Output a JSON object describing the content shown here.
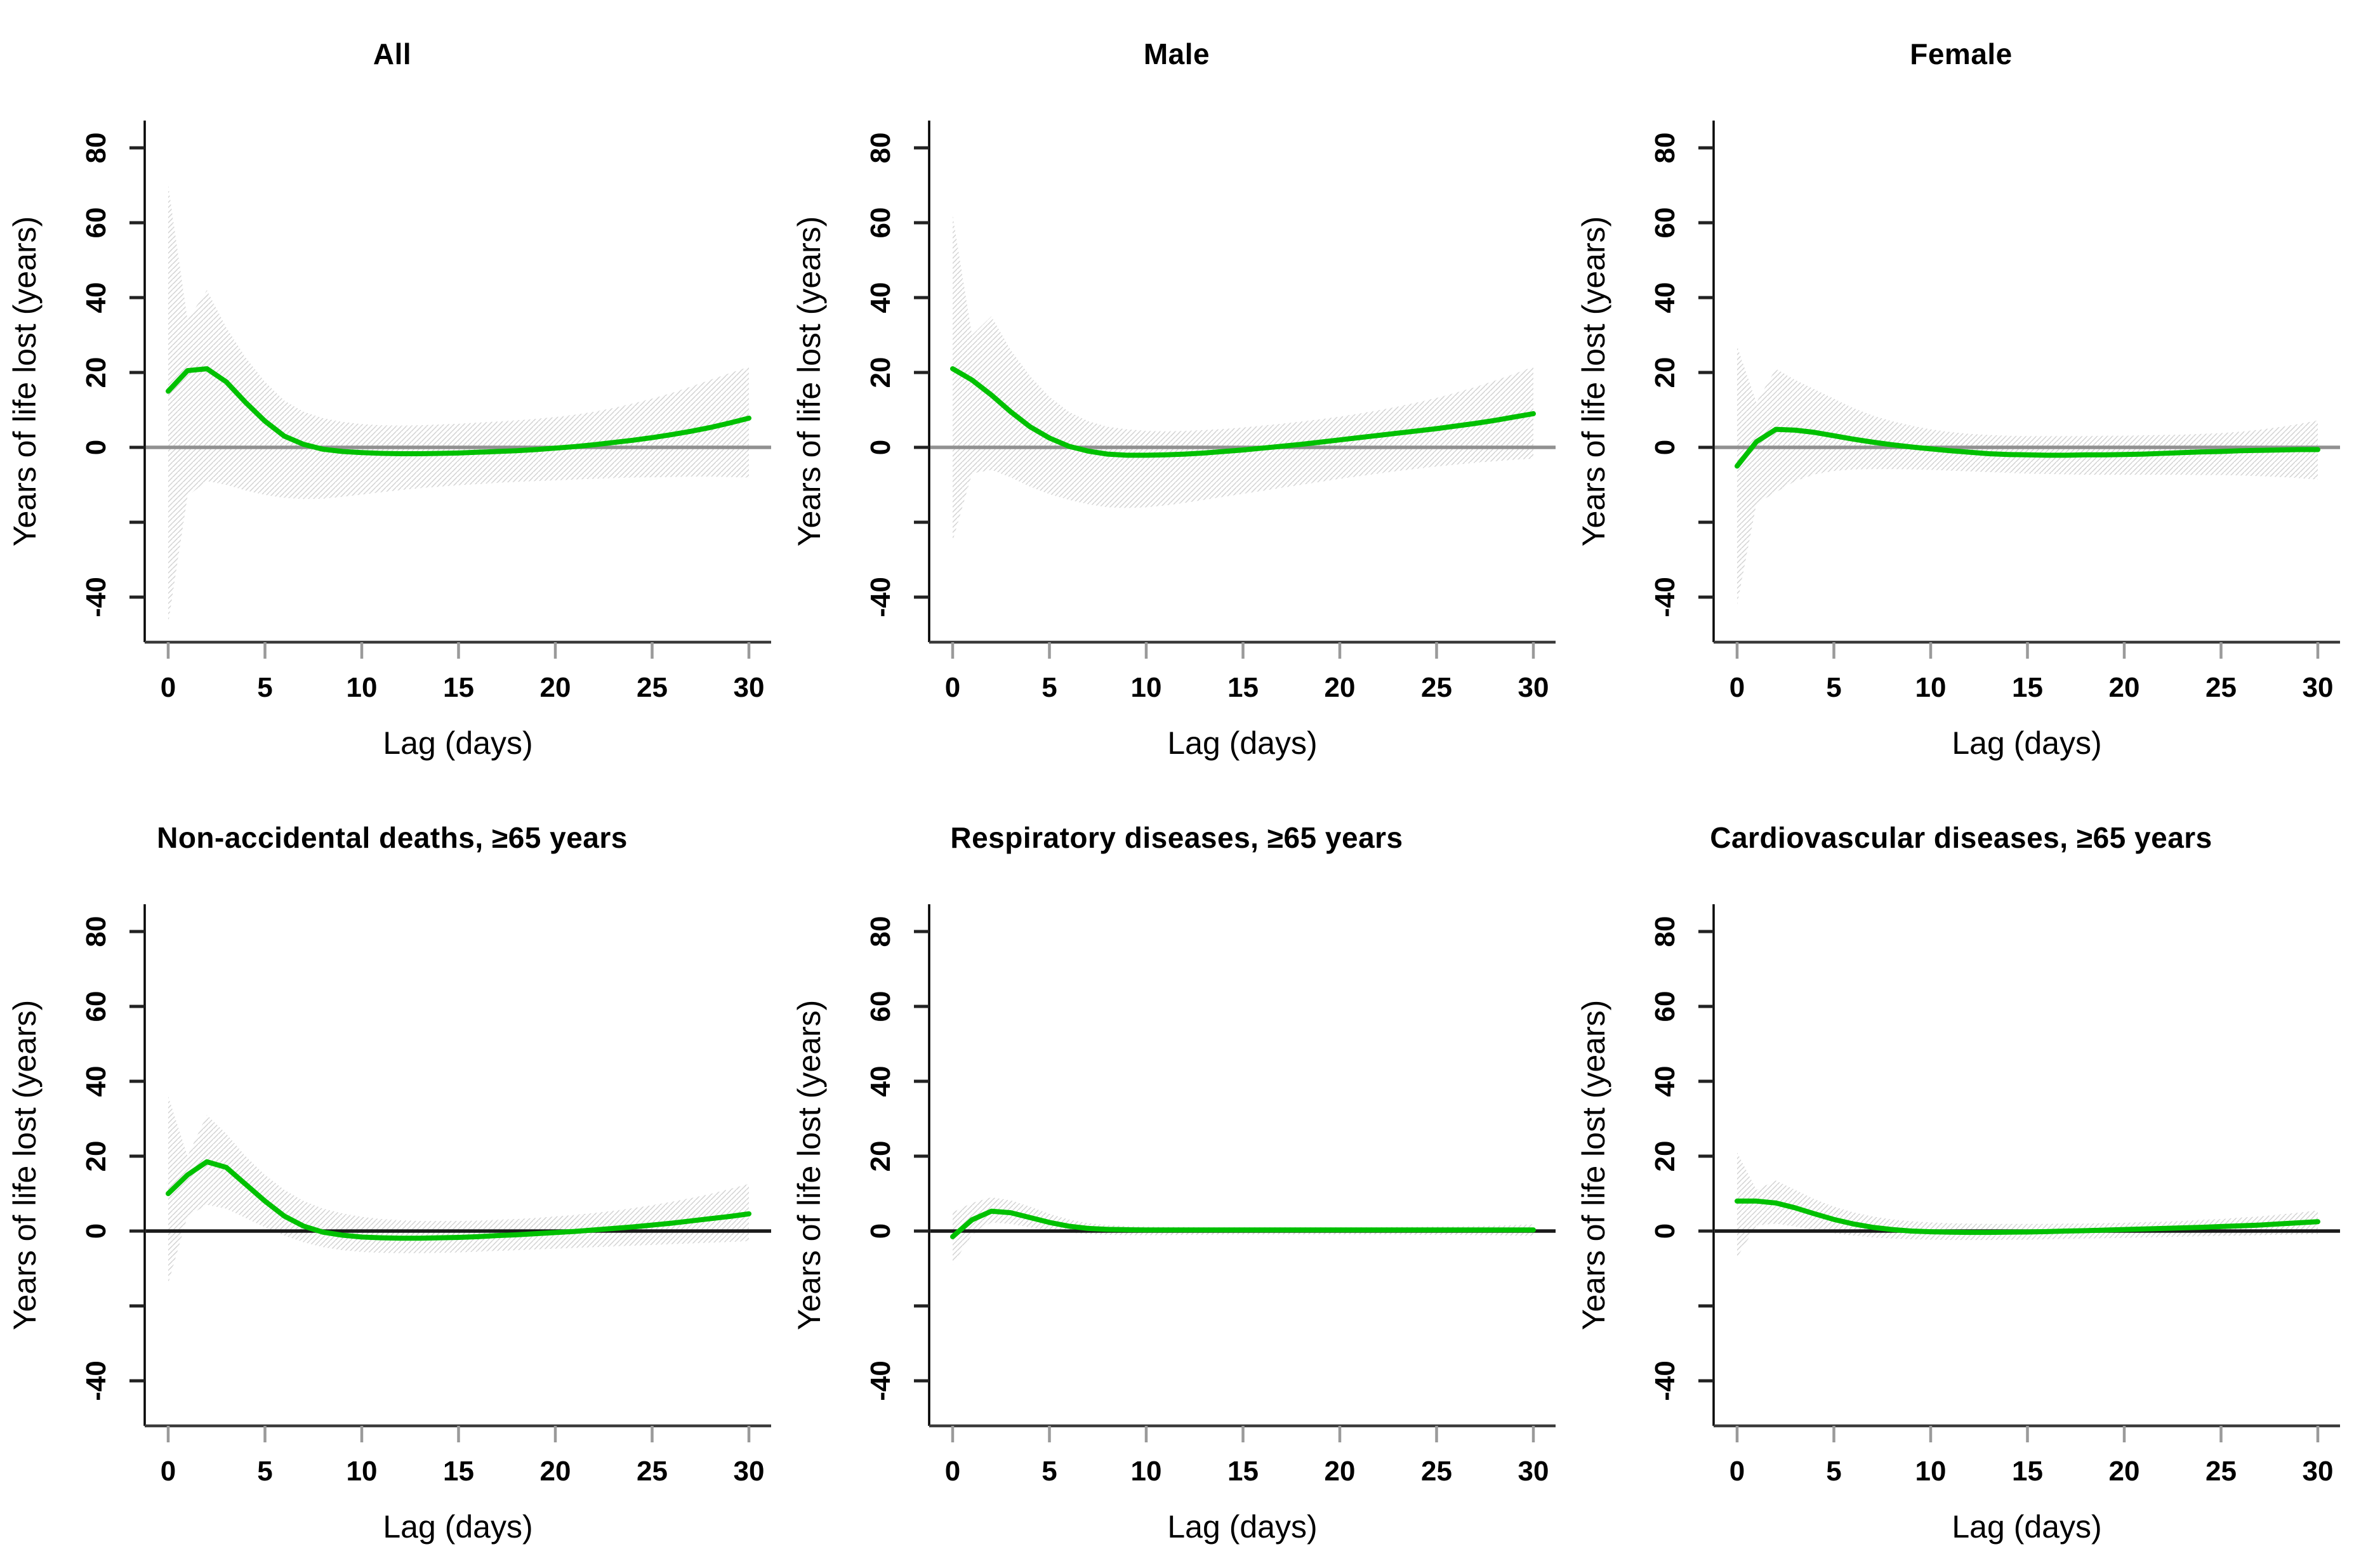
{
  "page": {
    "background": "#ffffff"
  },
  "chart_data": {
    "type": "line",
    "description": "Six-panel line chart of years of life lost vs lag in days, each with a green point-estimate curve and a hatched gray confidence band around a horizontal zero reference line.",
    "shared": {
      "xlabel": "Lag (days)",
      "ylabel": "Years of life lost (years)",
      "x": [
        0,
        1,
        2,
        3,
        4,
        5,
        6,
        7,
        8,
        9,
        10,
        11,
        12,
        13,
        14,
        15,
        16,
        17,
        18,
        19,
        20,
        21,
        22,
        23,
        24,
        25,
        26,
        27,
        28,
        29,
        30
      ],
      "xticks": [
        0,
        5,
        10,
        15,
        20,
        25,
        30
      ],
      "yticks": [
        {
          "v": 80,
          "label": "80"
        },
        {
          "v": 60,
          "label": "60"
        },
        {
          "v": 40,
          "label": "40"
        },
        {
          "v": 20,
          "label": "20"
        },
        {
          "v": 0,
          "label": "0"
        },
        {
          "v": -20,
          "label": ""
        },
        {
          "v": -40,
          "label": "-40"
        }
      ],
      "xlim": [
        -1.2,
        32
      ],
      "ylim": [
        -52,
        87
      ],
      "line_color": "#00c000",
      "band_hatch_color": "#d2d2d2",
      "axis_color": "#3a3a3a",
      "y_axis_color": "#000000",
      "x_tick_color": "#9a9a9a",
      "y_tick_color": "#222222",
      "legend": "none",
      "grid": "off"
    },
    "panels": [
      {
        "title": "All",
        "zero_line_color": "#919191",
        "series": {
          "estimate": [
            15,
            20.5,
            21,
            17.5,
            12,
            7,
            3,
            0.8,
            -0.5,
            -1.1,
            -1.4,
            -1.6,
            -1.7,
            -1.7,
            -1.6,
            -1.5,
            -1.3,
            -1.1,
            -0.9,
            -0.6,
            -0.2,
            0.2,
            0.7,
            1.3,
            1.9,
            2.6,
            3.4,
            4.3,
            5.3,
            6.5,
            7.8
          ],
          "ci_upper": [
            70,
            34,
            42,
            32,
            24,
            17.5,
            12.5,
            9.5,
            7.8,
            6.8,
            6.2,
            5.9,
            5.8,
            5.9,
            6.1,
            6.3,
            6.6,
            6.9,
            7.2,
            7.6,
            8.1,
            8.7,
            9.5,
            10.5,
            11.7,
            13,
            14.5,
            16.2,
            18,
            19.8,
            21.5
          ],
          "ci_lower": [
            -47,
            -13,
            -9,
            -10,
            -11.5,
            -12.7,
            -13.5,
            -13.8,
            -13.7,
            -13.2,
            -12.6,
            -12,
            -11.4,
            -10.9,
            -10.5,
            -10.1,
            -9.8,
            -9.5,
            -9.2,
            -9,
            -8.8,
            -8.6,
            -8.4,
            -8.2,
            -8.1,
            -8,
            -7.9,
            -7.8,
            -7.8,
            -7.9,
            -8.1
          ]
        }
      },
      {
        "title": "Male",
        "zero_line_color": "#919191",
        "series": {
          "estimate": [
            21,
            18,
            14,
            9.5,
            5.5,
            2.5,
            0.3,
            -1,
            -1.8,
            -2.1,
            -2.1,
            -2,
            -1.8,
            -1.5,
            -1.1,
            -0.7,
            -0.2,
            0.3,
            0.8,
            1.4,
            2,
            2.6,
            3.2,
            3.8,
            4.4,
            5,
            5.7,
            6.4,
            7.2,
            8.1,
            9
          ],
          "ci_upper": [
            62,
            30,
            35,
            26,
            19,
            13.5,
            9.5,
            7,
            5.5,
            4.8,
            4.4,
            4.3,
            4.4,
            4.6,
            4.9,
            5.3,
            5.8,
            6.3,
            6.9,
            7.5,
            8.2,
            9,
            9.9,
            10.9,
            12,
            13.2,
            14.6,
            16.1,
            17.8,
            19.6,
            21.5
          ],
          "ci_lower": [
            -25,
            -7,
            -6,
            -8,
            -10.5,
            -12.5,
            -14,
            -15.2,
            -16,
            -16.2,
            -16,
            -15.5,
            -14.8,
            -14,
            -13.2,
            -12.4,
            -11.6,
            -10.8,
            -10,
            -9.2,
            -8.4,
            -7.7,
            -7,
            -6.3,
            -5.7,
            -5.1,
            -4.6,
            -4.1,
            -3.7,
            -3.3,
            -3
          ]
        }
      },
      {
        "title": "Female",
        "zero_line_color": "#919191",
        "series": {
          "estimate": [
            -5,
            1.5,
            4.8,
            4.6,
            4,
            3.1,
            2.2,
            1.4,
            0.7,
            0.1,
            -0.4,
            -0.9,
            -1.3,
            -1.7,
            -1.9,
            -2,
            -2.1,
            -2.1,
            -2,
            -2,
            -1.9,
            -1.8,
            -1.6,
            -1.4,
            -1.2,
            -1.1,
            -0.9,
            -0.8,
            -0.7,
            -0.6,
            -0.6
          ],
          "ci_upper": [
            27,
            12,
            21,
            18,
            15.5,
            13,
            10.5,
            8.5,
            7,
            5.8,
            4.8,
            4.1,
            3.6,
            3.3,
            3.1,
            3,
            3,
            3,
            3,
            3.1,
            3.1,
            3.2,
            3.3,
            3.4,
            3.6,
            3.8,
            4.2,
            4.7,
            5.4,
            6.2,
            7.2
          ],
          "ci_lower": [
            -42,
            -15,
            -12,
            -9,
            -7.2,
            -6.3,
            -5.9,
            -5.8,
            -5.8,
            -5.9,
            -6,
            -6.2,
            -6.4,
            -6.6,
            -6.8,
            -7,
            -7.1,
            -7.2,
            -7.3,
            -7.3,
            -7.3,
            -7.3,
            -7.3,
            -7.3,
            -7.4,
            -7.4,
            -7.5,
            -7.7,
            -7.9,
            -8.2,
            -8.6
          ]
        }
      },
      {
        "title": "Non-accidental deaths, ≥65 years",
        "zero_line_color": "#1a1a1a",
        "series": {
          "estimate": [
            10,
            15,
            18.5,
            17,
            12.5,
            8,
            4,
            1.3,
            -0.3,
            -1.1,
            -1.6,
            -1.8,
            -1.9,
            -1.9,
            -1.8,
            -1.7,
            -1.5,
            -1.2,
            -1,
            -0.7,
            -0.4,
            -0.1,
            0.3,
            0.7,
            1.1,
            1.6,
            2.1,
            2.7,
            3.3,
            3.9,
            4.6
          ],
          "ci_upper": [
            36,
            20,
            31,
            26,
            20,
            15,
            11,
            8,
            6,
            4.7,
            3.8,
            3.2,
            2.9,
            2.7,
            2.7,
            2.7,
            2.8,
            3,
            3.2,
            3.5,
            3.9,
            4.3,
            4.8,
            5.4,
            6.1,
            6.9,
            7.8,
            8.8,
            9.9,
            11.2,
            12.6
          ],
          "ci_lower": [
            -14,
            4,
            7,
            6,
            3.5,
            1,
            -1.2,
            -3,
            -4.3,
            -5.1,
            -5.6,
            -5.8,
            -5.9,
            -5.9,
            -5.8,
            -5.7,
            -5.5,
            -5.3,
            -5.1,
            -4.9,
            -4.7,
            -4.5,
            -4.3,
            -4.1,
            -3.9,
            -3.7,
            -3.5,
            -3.3,
            -3.1,
            -2.9,
            -2.7
          ]
        }
      },
      {
        "title": "Respiratory diseases, ≥65 years",
        "zero_line_color": "#1a1a1a",
        "series": {
          "estimate": [
            -1.5,
            3,
            5.3,
            4.9,
            3.6,
            2.3,
            1.3,
            0.7,
            0.45,
            0.35,
            0.3,
            0.3,
            0.3,
            0.3,
            0.3,
            0.3,
            0.3,
            0.3,
            0.3,
            0.3,
            0.3,
            0.3,
            0.3,
            0.3,
            0.3,
            0.3,
            0.3,
            0.3,
            0.3,
            0.3,
            0.3
          ],
          "ci_upper": [
            5,
            7.5,
            9,
            8.2,
            6.5,
            4.6,
            3.1,
            2.1,
            1.6,
            1.3,
            1.2,
            1.1,
            1.1,
            1,
            1,
            1,
            1,
            1,
            1,
            1,
            1,
            1,
            1,
            1.1,
            1.1,
            1.2,
            1.2,
            1.3,
            1.4,
            1.6,
            1.8
          ],
          "ci_lower": [
            -9,
            -1,
            2.3,
            1.9,
            1,
            0.2,
            -0.4,
            -0.8,
            -1,
            -1.1,
            -1.1,
            -1.1,
            -1,
            -1,
            -0.9,
            -0.9,
            -0.9,
            -0.9,
            -0.9,
            -0.9,
            -0.9,
            -0.9,
            -0.9,
            -0.9,
            -1,
            -1,
            -1,
            -1.1,
            -1.1,
            -1.2,
            -1.3
          ]
        }
      },
      {
        "title": "Cardiovascular diseases, ≥65 years",
        "zero_line_color": "#1a1a1a",
        "series": {
          "estimate": [
            8,
            8,
            7.5,
            6.2,
            4.6,
            3.1,
            1.9,
            1,
            0.4,
            0,
            -0.2,
            -0.3,
            -0.35,
            -0.35,
            -0.3,
            -0.25,
            -0.15,
            0,
            0.1,
            0.25,
            0.4,
            0.55,
            0.7,
            0.85,
            1,
            1.2,
            1.4,
            1.6,
            1.9,
            2.2,
            2.5
          ],
          "ci_upper": [
            21,
            11,
            13.5,
            11,
            8.5,
            6.5,
            5,
            3.9,
            3.1,
            2.6,
            2.3,
            2.1,
            2,
            1.9,
            1.9,
            1.9,
            1.9,
            2,
            2,
            2.1,
            2.2,
            2.4,
            2.5,
            2.7,
            3,
            3.2,
            3.6,
            3.9,
            4.4,
            4.9,
            5.5
          ],
          "ci_lower": [
            -7,
            1.5,
            2,
            1.2,
            0.2,
            -0.6,
            -1.2,
            -1.7,
            -2,
            -2.2,
            -2.3,
            -2.4,
            -2.4,
            -2.4,
            -2.3,
            -2.3,
            -2.2,
            -2.1,
            -2,
            -1.9,
            -1.8,
            -1.7,
            -1.6,
            -1.5,
            -1.4,
            -1.3,
            -1.2,
            -1.1,
            -1,
            -0.9,
            -0.8
          ]
        }
      }
    ]
  }
}
